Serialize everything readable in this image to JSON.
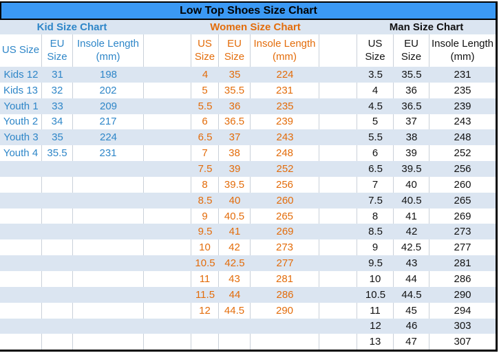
{
  "colors": {
    "title_bg": "#3B99F4",
    "band_bg": "#DBE5F1",
    "kid_text": "#2E86C8",
    "women_text": "#E36C0A",
    "man_text": "#121212",
    "grid_line": "#C9D0D9",
    "frame": "#000000"
  },
  "chart_data": {
    "type": "table",
    "title": "Low Top Shoes Size Chart",
    "row_count": 18,
    "sections": [
      {
        "key": "kid",
        "header": "Kid Size Chart",
        "columns": [
          "US Size",
          "EU\nSize",
          "Insole Length\n(mm)"
        ],
        "rows": [
          [
            "Kids 12",
            "31",
            "198"
          ],
          [
            "Kids 13",
            "32",
            "202"
          ],
          [
            "Youth 1",
            "33",
            "209"
          ],
          [
            "Youth 2",
            "34",
            "217"
          ],
          [
            "Youth 3",
            "35",
            "224"
          ],
          [
            "Youth 4",
            "35.5",
            "231"
          ]
        ]
      },
      {
        "key": "women",
        "header": "Women Size Chart",
        "columns": [
          "US\nSize",
          "EU\nSize",
          "Insole Length\n(mm)"
        ],
        "rows": [
          [
            "4",
            "35",
            "224"
          ],
          [
            "5",
            "35.5",
            "231"
          ],
          [
            "5.5",
            "36",
            "235"
          ],
          [
            "6",
            "36.5",
            "239"
          ],
          [
            "6.5",
            "37",
            "243"
          ],
          [
            "7",
            "38",
            "248"
          ],
          [
            "7.5",
            "39",
            "252"
          ],
          [
            "8",
            "39.5",
            "256"
          ],
          [
            "8.5",
            "40",
            "260"
          ],
          [
            "9",
            "40.5",
            "265"
          ],
          [
            "9.5",
            "41",
            "269"
          ],
          [
            "10",
            "42",
            "273"
          ],
          [
            "10.5",
            "42.5",
            "277"
          ],
          [
            "11",
            "43",
            "281"
          ],
          [
            "11.5",
            "44",
            "286"
          ],
          [
            "12",
            "44.5",
            "290"
          ]
        ]
      },
      {
        "key": "man",
        "header": "Man Size Chart",
        "columns": [
          "US\nSize",
          "EU\nSize",
          "Insole Length\n(mm)"
        ],
        "rows": [
          [
            "3.5",
            "35.5",
            "231"
          ],
          [
            "4",
            "36",
            "235"
          ],
          [
            "4.5",
            "36.5",
            "239"
          ],
          [
            "5",
            "37",
            "243"
          ],
          [
            "5.5",
            "38",
            "248"
          ],
          [
            "6",
            "39",
            "252"
          ],
          [
            "6.5",
            "39.5",
            "256"
          ],
          [
            "7",
            "40",
            "260"
          ],
          [
            "7.5",
            "40.5",
            "265"
          ],
          [
            "8",
            "41",
            "269"
          ],
          [
            "8.5",
            "42",
            "273"
          ],
          [
            "9",
            "42.5",
            "277"
          ],
          [
            "9.5",
            "43",
            "281"
          ],
          [
            "10",
            "44",
            "286"
          ],
          [
            "10.5",
            "44.5",
            "290"
          ],
          [
            "11",
            "45",
            "294"
          ],
          [
            "12",
            "46",
            "303"
          ],
          [
            "13",
            "47",
            "307"
          ]
        ]
      }
    ]
  }
}
